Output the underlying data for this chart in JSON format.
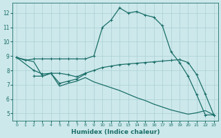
{
  "xlabel": "Humidex (Indice chaleur)",
  "bg_color": "#cce8eb",
  "grid_color": "#aacfd4",
  "line_color": "#1a6e68",
  "xlim": [
    -0.5,
    23.5
  ],
  "ylim": [
    4.5,
    12.7
  ],
  "xticks": [
    0,
    1,
    2,
    3,
    4,
    5,
    6,
    7,
    8,
    9,
    10,
    11,
    12,
    13,
    14,
    15,
    16,
    17,
    18,
    19,
    20,
    21,
    22,
    23
  ],
  "yticks": [
    5,
    6,
    7,
    8,
    9,
    10,
    11,
    12
  ],
  "line1_x": [
    0,
    1,
    2,
    3,
    4,
    5,
    6,
    7,
    8,
    9,
    10,
    11,
    12,
    13,
    14,
    15,
    16,
    17,
    18,
    19,
    20,
    21,
    22,
    23
  ],
  "line1_y": [
    8.9,
    8.7,
    8.8,
    8.8,
    8.8,
    8.8,
    8.8,
    8.8,
    8.8,
    9.0,
    11.0,
    11.5,
    12.35,
    12.0,
    12.1,
    11.85,
    11.7,
    11.1,
    9.3,
    8.55,
    7.6,
    6.3,
    4.9,
    4.9
  ],
  "line2_x": [
    0,
    2,
    3,
    4,
    5,
    6,
    7,
    8,
    9,
    10,
    11,
    12,
    13,
    14,
    15,
    16,
    17,
    18,
    19,
    20,
    21,
    22,
    23
  ],
  "line2_y": [
    8.9,
    8.0,
    7.75,
    7.8,
    7.8,
    7.7,
    7.55,
    7.8,
    8.0,
    8.2,
    8.3,
    8.4,
    8.45,
    8.5,
    8.55,
    8.6,
    8.65,
    8.7,
    8.75,
    8.55,
    7.7,
    6.35,
    4.9
  ],
  "line3_x": [
    2,
    3,
    4,
    5,
    6,
    7,
    8
  ],
  "line3_y": [
    7.6,
    7.6,
    7.8,
    7.1,
    7.25,
    7.4,
    7.75
  ],
  "line4_x": [
    0,
    2,
    3,
    4,
    5,
    6,
    7,
    8,
    9,
    10,
    11,
    12,
    13,
    14,
    15,
    16,
    17,
    18,
    19,
    20,
    21,
    22,
    23
  ],
  "line4_y": [
    8.9,
    8.6,
    7.6,
    7.8,
    6.9,
    7.1,
    7.25,
    7.5,
    7.2,
    7.0,
    6.8,
    6.6,
    6.35,
    6.1,
    5.9,
    5.65,
    5.45,
    5.25,
    5.1,
    4.95,
    5.05,
    5.2,
    4.9
  ]
}
